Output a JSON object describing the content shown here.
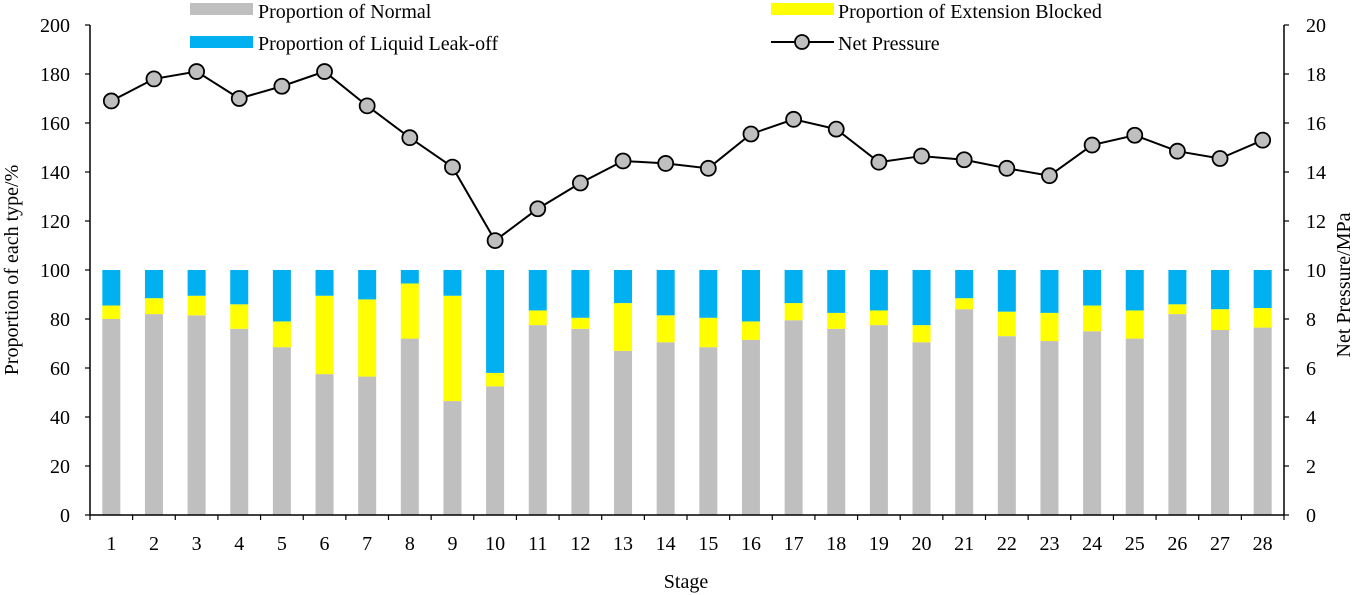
{
  "chart_data": {
    "type": "bar",
    "stacked": true,
    "xlabel": "Stage",
    "ylabel_left": "Proportion of each type/%",
    "ylabel_right": "Net Pressure/MPa",
    "ylim_left": [
      0,
      200
    ],
    "ylim_right": [
      0,
      20
    ],
    "yticks_left": [
      0,
      20,
      40,
      60,
      80,
      100,
      120,
      140,
      160,
      180,
      200
    ],
    "yticks_right": [
      0,
      2,
      4,
      6,
      8,
      10,
      12,
      14,
      16,
      18,
      20
    ],
    "grid": false,
    "legend_position": "top",
    "categories": [
      "1",
      "2",
      "3",
      "4",
      "5",
      "6",
      "7",
      "8",
      "9",
      "10",
      "11",
      "12",
      "13",
      "14",
      "15",
      "16",
      "17",
      "18",
      "19",
      "20",
      "21",
      "22",
      "23",
      "24",
      "25",
      "26",
      "27",
      "28"
    ],
    "series": [
      {
        "name": "Proportion of Normal",
        "kind": "bar",
        "axis": "left",
        "color": "#bfbfbf",
        "values": [
          80,
          82,
          81.5,
          76,
          68.5,
          57.5,
          56.5,
          72,
          46.5,
          52.5,
          77.5,
          76,
          67,
          70.5,
          68.5,
          71.5,
          79.5,
          76,
          77.5,
          70.5,
          84,
          73,
          71,
          75,
          72,
          82,
          75.5,
          76.5
        ]
      },
      {
        "name": "Proportion of Extension Blocked",
        "kind": "bar",
        "axis": "left",
        "color": "#ffff00",
        "values": [
          5.5,
          6.5,
          8,
          10,
          10.5,
          32,
          31.5,
          22.5,
          43,
          5.5,
          6,
          4.5,
          19.5,
          11,
          12,
          7.5,
          7,
          6.5,
          6,
          7,
          4.5,
          10,
          11.5,
          10.5,
          11.5,
          4,
          8.5,
          8
        ]
      },
      {
        "name": "Proportion of Liquid Leak-off",
        "kind": "bar",
        "axis": "left",
        "color": "#00b0f0",
        "values": [
          14.5,
          11.5,
          10.5,
          14,
          21,
          10.5,
          12,
          5.5,
          10.5,
          42,
          16.5,
          19.5,
          13.5,
          18.5,
          19.5,
          21,
          13.5,
          17.5,
          16.5,
          22.5,
          11.5,
          17,
          17.5,
          14.5,
          16.5,
          14,
          16,
          15.5
        ]
      },
      {
        "name": "Net Pressure",
        "kind": "line",
        "axis": "right",
        "color": "#000000",
        "marker_fill": "#bfbfbf",
        "values": [
          16.9,
          17.8,
          18.1,
          17.0,
          17.5,
          18.1,
          16.7,
          15.4,
          14.2,
          11.2,
          12.5,
          13.55,
          14.45,
          14.35,
          14.15,
          15.55,
          16.15,
          15.75,
          14.4,
          14.65,
          14.5,
          14.15,
          13.85,
          15.1,
          15.5,
          14.85,
          14.55,
          15.3
        ]
      }
    ]
  }
}
